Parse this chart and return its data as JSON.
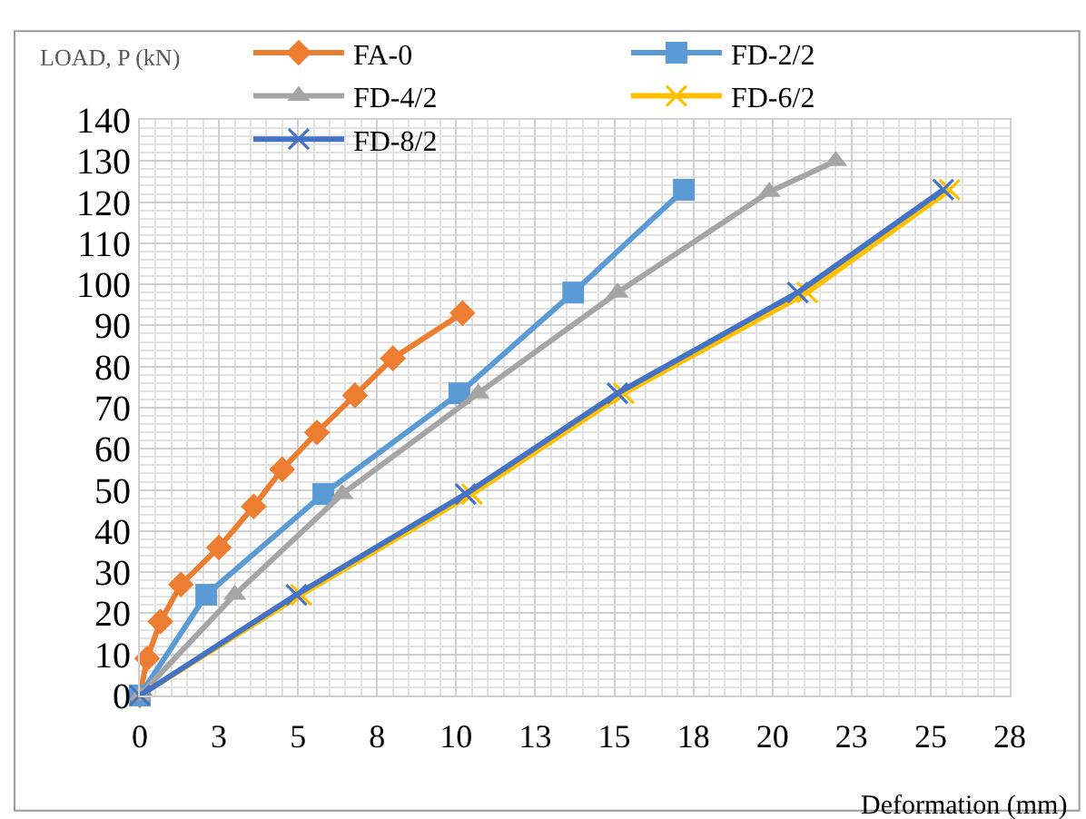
{
  "chart_data": {
    "type": "line",
    "xlabel": "Deformation (mm)",
    "ylabel": "LOAD, P (kN)",
    "series": [
      {
        "name": "FA-0",
        "color": "#ed7d31",
        "marker": "diamond",
        "x": [
          0,
          0.23,
          0.65,
          1.3,
          2.5,
          3.6,
          4.5,
          5.6,
          6.8,
          8.0,
          10.2
        ],
        "values": [
          0,
          9,
          18,
          27,
          36,
          46,
          55,
          64,
          73,
          82,
          93
        ]
      },
      {
        "name": "FD-2/2",
        "color": "#5b9bd5",
        "marker": "square",
        "x": [
          0,
          2.1,
          5.8,
          10.1,
          13.7,
          17.2
        ],
        "values": [
          0,
          24.5,
          49,
          73.5,
          98,
          123
        ]
      },
      {
        "name": "FD-4/2",
        "color": "#a5a5a5",
        "marker": "triangle",
        "x": [
          0,
          3.0,
          6.4,
          10.7,
          15.1,
          19.9,
          22.0
        ],
        "values": [
          0,
          24.5,
          49,
          73.5,
          98,
          122.5,
          130
        ]
      },
      {
        "name": "FD-6/2",
        "color": "#ffc000",
        "marker": "cross",
        "x": [
          0,
          5.1,
          10.5,
          15.3,
          21.1,
          25.6
        ],
        "values": [
          0,
          24.5,
          49,
          73.5,
          98,
          123
        ]
      },
      {
        "name": "FD-8/2",
        "color": "#4472c4",
        "marker": "cross",
        "x": [
          0,
          4.95,
          10.3,
          15.1,
          20.8,
          25.4
        ],
        "values": [
          0,
          24.5,
          49,
          73.5,
          98,
          123
        ]
      }
    ],
    "xlim": [
      0,
      27.5
    ],
    "xticks": [
      {
        "value": 0,
        "label": "0"
      },
      {
        "value": 2.5,
        "label": "3"
      },
      {
        "value": 5,
        "label": "5"
      },
      {
        "value": 7.5,
        "label": "8"
      },
      {
        "value": 10,
        "label": "10"
      },
      {
        "value": 12.5,
        "label": "13"
      },
      {
        "value": 15,
        "label": "15"
      },
      {
        "value": 17.5,
        "label": "18"
      },
      {
        "value": 20,
        "label": "20"
      },
      {
        "value": 22.5,
        "label": "23"
      },
      {
        "value": 25,
        "label": "25"
      },
      {
        "value": 27.5,
        "label": "28"
      }
    ],
    "ylim": [
      0,
      140
    ],
    "yticks": [
      0,
      10,
      20,
      30,
      40,
      50,
      60,
      70,
      80,
      90,
      100,
      110,
      120,
      130,
      140
    ],
    "grid": true,
    "legend": "top",
    "line_style": "solid"
  }
}
